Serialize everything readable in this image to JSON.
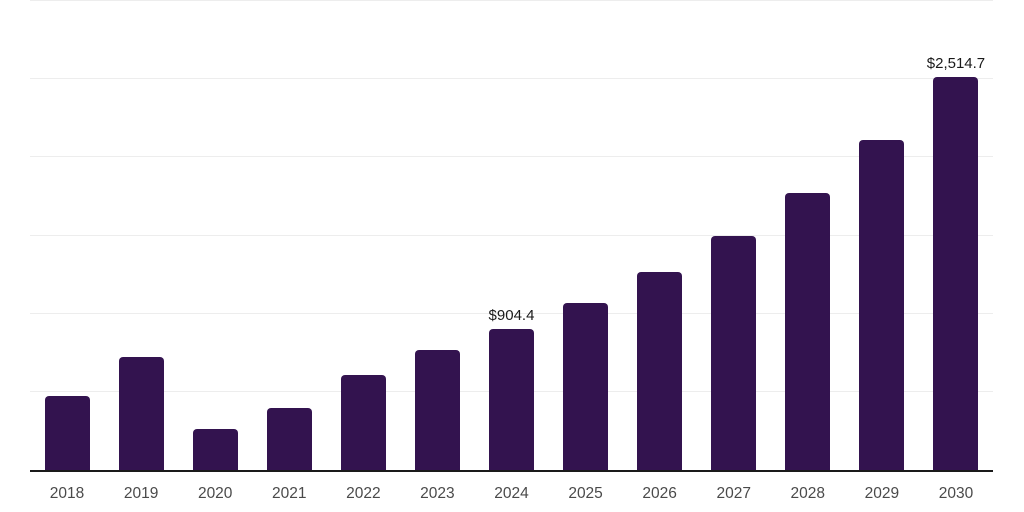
{
  "chart_data": {
    "type": "bar",
    "title": "",
    "xlabel": "",
    "ylabel": "",
    "categories": [
      "2018",
      "2019",
      "2020",
      "2021",
      "2022",
      "2023",
      "2024",
      "2025",
      "2026",
      "2027",
      "2028",
      "2029",
      "2030"
    ],
    "values": [
      472,
      721,
      262,
      396,
      606,
      766,
      904.4,
      1066,
      1264,
      1494,
      1774,
      2113,
      2514.7
    ],
    "data_labels": [
      null,
      null,
      null,
      null,
      null,
      null,
      "$904.4",
      null,
      null,
      null,
      null,
      null,
      "$2,514.7"
    ],
    "ylim": [
      0,
      3000
    ],
    "gridline_step": 500,
    "grid": true,
    "legend": false
  },
  "colors": {
    "bar": "#33134f",
    "gridline": "#ededed",
    "axis_line": "#1a1a1a",
    "tick_label": "#4a4a4a",
    "data_label": "#1a1a1a",
    "background": "#ffffff"
  }
}
